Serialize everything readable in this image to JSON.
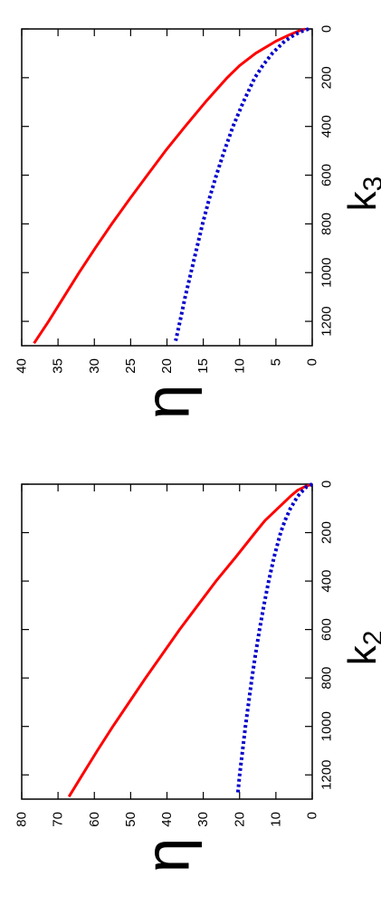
{
  "chart_data": [
    {
      "type": "line",
      "xlabel": "k",
      "xlabel_sub": "2",
      "ylabel": "η",
      "xlim": [
        0,
        1300
      ],
      "ylim": [
        0,
        80
      ],
      "xticks": [
        0,
        200,
        400,
        600,
        800,
        1000,
        1200
      ],
      "yticks": [
        0,
        10,
        20,
        30,
        40,
        50,
        60,
        70,
        80
      ],
      "grid": false,
      "orientation": "rotated-90",
      "series": [
        {
          "style": "solid",
          "color": "#ff0000",
          "x": [
            0,
            10,
            25,
            50,
            100,
            150,
            200,
            300,
            400,
            500,
            600,
            700,
            800,
            900,
            1000,
            1100,
            1200,
            1290
          ],
          "y": [
            0,
            2,
            4,
            6,
            9.5,
            13,
            15.7,
            21,
            26.5,
            31.5,
            36.5,
            41.2,
            45.9,
            50.4,
            54.9,
            59.2,
            63.3,
            67
          ]
        },
        {
          "style": "dotted",
          "color": "#0000cc",
          "x": [
            0,
            10,
            25,
            50,
            100,
            150,
            200,
            300,
            400,
            500,
            600,
            700,
            800,
            900,
            1000,
            1100,
            1200,
            1280
          ],
          "y": [
            0,
            1.5,
            2.5,
            4,
            6,
            7.5,
            8.7,
            10.5,
            12,
            13.3,
            14.5,
            15.6,
            16.6,
            17.5,
            18.4,
            19.2,
            20,
            20.5
          ]
        }
      ]
    },
    {
      "type": "line",
      "xlabel": "k",
      "xlabel_sub": "3",
      "ylabel": "η",
      "xlim": [
        0,
        1300
      ],
      "ylim": [
        0,
        40
      ],
      "xticks": [
        0,
        200,
        400,
        600,
        800,
        1000,
        1200
      ],
      "yticks": [
        0,
        5,
        10,
        15,
        20,
        25,
        30,
        35,
        40
      ],
      "grid": false,
      "orientation": "rotated-90",
      "series": [
        {
          "style": "solid",
          "color": "#ff0000",
          "x": [
            0,
            10,
            25,
            50,
            100,
            150,
            200,
            300,
            400,
            500,
            600,
            700,
            800,
            900,
            1000,
            1100,
            1200,
            1290
          ],
          "y": [
            1,
            2,
            3.2,
            5,
            7.8,
            10,
            11.7,
            14.7,
            17.5,
            20.2,
            22.7,
            25.2,
            27.6,
            29.9,
            32.1,
            34.2,
            36.3,
            38.3
          ]
        },
        {
          "style": "dotted",
          "color": "#0000cc",
          "x": [
            0,
            10,
            25,
            50,
            100,
            150,
            200,
            300,
            400,
            500,
            600,
            700,
            800,
            900,
            1000,
            1100,
            1200,
            1280
          ],
          "y": [
            0.5,
            1.5,
            2.5,
            3.8,
            5.5,
            6.8,
            7.9,
            9.5,
            10.9,
            12.1,
            13.2,
            14.2,
            15.1,
            15.9,
            16.7,
            17.5,
            18.2,
            18.8
          ]
        }
      ]
    }
  ]
}
